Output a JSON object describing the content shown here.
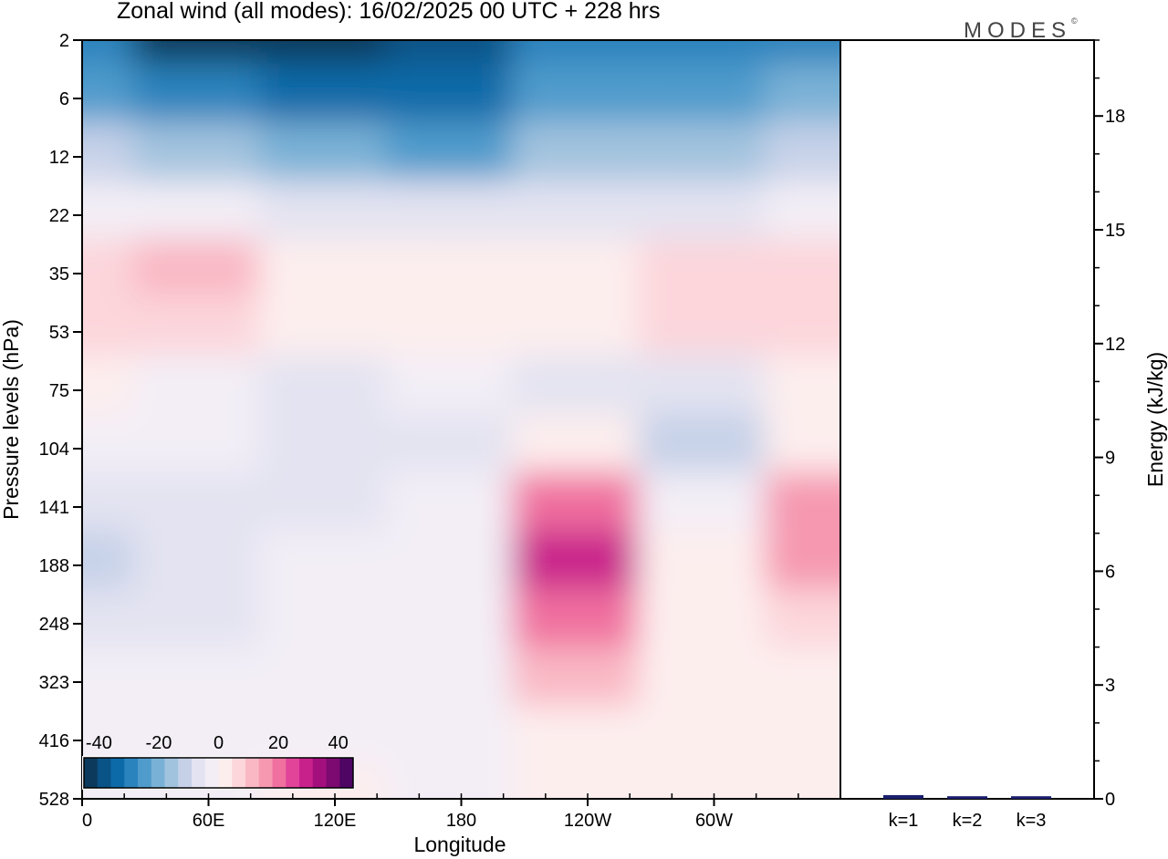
{
  "header": {
    "title": "Zonal wind (all modes):  16/02/2025  00 UTC  + 228 hrs",
    "logo_text": "MODES",
    "logo_mark": "©"
  },
  "chart_data": [
    {
      "type": "heatmap",
      "title": "Zonal wind (all modes):  16/02/2025  00 UTC  + 228 hrs",
      "xlabel": "Longitude",
      "ylabel": "Pressure levels (hPa)",
      "x_tick_labels": [
        "0",
        "60E",
        "120E",
        "180",
        "120W",
        "60W"
      ],
      "x_tick_degrees": [
        0,
        60,
        120,
        180,
        240,
        300
      ],
      "xlim": [
        0,
        360
      ],
      "y_tick_labels": [
        "2",
        "6",
        "12",
        "22",
        "35",
        "53",
        "75",
        "104",
        "141",
        "188",
        "248",
        "323",
        "416",
        "528"
      ],
      "y_axis_inverted": true,
      "colorbar": {
        "tick_labels": [
          "-40",
          "-20",
          "0",
          "20",
          "40"
        ],
        "range": [
          -45,
          45
        ],
        "colors": [
          "#0b3a5c",
          "#0a5386",
          "#0d6aa8",
          "#2a83bd",
          "#4f9bcc",
          "#79b1d6",
          "#a2c3de",
          "#c6d1e8",
          "#e3e3f1",
          "#f3eef6",
          "#fdeeee",
          "#fcd6db",
          "#f9b8c4",
          "#f598b0",
          "#f0709f",
          "#e2449a",
          "#c9218c",
          "#a40f7e",
          "#7c0a70",
          "#4e0564"
        ]
      },
      "cells": [
        {
          "lon": 0,
          "p": 2,
          "u": -28
        },
        {
          "lon": 60,
          "p": 2,
          "u": -44
        },
        {
          "lon": 120,
          "p": 2,
          "u": -44
        },
        {
          "lon": 180,
          "p": 2,
          "u": -40
        },
        {
          "lon": 240,
          "p": 2,
          "u": -30
        },
        {
          "lon": 300,
          "p": 2,
          "u": -30
        },
        {
          "lon": 360,
          "p": 2,
          "u": -28
        },
        {
          "lon": 0,
          "p": 6,
          "u": -24
        },
        {
          "lon": 60,
          "p": 6,
          "u": -30
        },
        {
          "lon": 120,
          "p": 6,
          "u": -36
        },
        {
          "lon": 180,
          "p": 6,
          "u": -32
        },
        {
          "lon": 240,
          "p": 6,
          "u": -26
        },
        {
          "lon": 300,
          "p": 6,
          "u": -24
        },
        {
          "lon": 360,
          "p": 6,
          "u": -22
        },
        {
          "lon": 0,
          "p": 12,
          "u": -12
        },
        {
          "lon": 60,
          "p": 12,
          "u": -16
        },
        {
          "lon": 120,
          "p": 12,
          "u": -22
        },
        {
          "lon": 180,
          "p": 12,
          "u": -24
        },
        {
          "lon": 240,
          "p": 12,
          "u": -16
        },
        {
          "lon": 300,
          "p": 12,
          "u": -14
        },
        {
          "lon": 360,
          "p": 12,
          "u": -12
        },
        {
          "lon": 0,
          "p": 22,
          "u": -4
        },
        {
          "lon": 60,
          "p": 22,
          "u": -4
        },
        {
          "lon": 120,
          "p": 22,
          "u": -6
        },
        {
          "lon": 180,
          "p": 22,
          "u": -8
        },
        {
          "lon": 240,
          "p": 22,
          "u": -6
        },
        {
          "lon": 300,
          "p": 22,
          "u": -6
        },
        {
          "lon": 360,
          "p": 22,
          "u": -4
        },
        {
          "lon": 0,
          "p": 35,
          "u": 5
        },
        {
          "lon": 60,
          "p": 35,
          "u": 10
        },
        {
          "lon": 120,
          "p": 35,
          "u": 2
        },
        {
          "lon": 180,
          "p": 35,
          "u": 1
        },
        {
          "lon": 240,
          "p": 35,
          "u": 4
        },
        {
          "lon": 300,
          "p": 35,
          "u": 5
        },
        {
          "lon": 360,
          "p": 35,
          "u": 6
        },
        {
          "lon": 0,
          "p": 53,
          "u": 5
        },
        {
          "lon": 60,
          "p": 53,
          "u": 8
        },
        {
          "lon": 120,
          "p": 53,
          "u": 3
        },
        {
          "lon": 180,
          "p": 53,
          "u": 0
        },
        {
          "lon": 240,
          "p": 53,
          "u": 2
        },
        {
          "lon": 300,
          "p": 53,
          "u": 5
        },
        {
          "lon": 360,
          "p": 53,
          "u": 6
        },
        {
          "lon": 0,
          "p": 75,
          "u": 1
        },
        {
          "lon": 60,
          "p": 75,
          "u": -2
        },
        {
          "lon": 120,
          "p": 75,
          "u": -6
        },
        {
          "lon": 180,
          "p": 75,
          "u": -4
        },
        {
          "lon": 240,
          "p": 75,
          "u": -6
        },
        {
          "lon": 300,
          "p": 75,
          "u": -6
        },
        {
          "lon": 360,
          "p": 75,
          "u": 1
        },
        {
          "lon": 0,
          "p": 104,
          "u": -2
        },
        {
          "lon": 60,
          "p": 104,
          "u": -4
        },
        {
          "lon": 120,
          "p": 104,
          "u": -8
        },
        {
          "lon": 180,
          "p": 104,
          "u": -6
        },
        {
          "lon": 240,
          "p": 104,
          "u": 2
        },
        {
          "lon": 300,
          "p": 104,
          "u": -10
        },
        {
          "lon": 360,
          "p": 104,
          "u": 4
        },
        {
          "lon": 0,
          "p": 141,
          "u": -6
        },
        {
          "lon": 60,
          "p": 141,
          "u": -8
        },
        {
          "lon": 120,
          "p": 141,
          "u": -6
        },
        {
          "lon": 180,
          "p": 141,
          "u": -4
        },
        {
          "lon": 240,
          "p": 141,
          "u": 20
        },
        {
          "lon": 300,
          "p": 141,
          "u": -2
        },
        {
          "lon": 360,
          "p": 141,
          "u": 14
        },
        {
          "lon": 0,
          "p": 188,
          "u": -10
        },
        {
          "lon": 60,
          "p": 188,
          "u": -6
        },
        {
          "lon": 120,
          "p": 188,
          "u": -4
        },
        {
          "lon": 180,
          "p": 188,
          "u": -3
        },
        {
          "lon": 240,
          "p": 188,
          "u": 30
        },
        {
          "lon": 300,
          "p": 188,
          "u": 2
        },
        {
          "lon": 360,
          "p": 188,
          "u": 14
        },
        {
          "lon": 0,
          "p": 248,
          "u": -6
        },
        {
          "lon": 60,
          "p": 248,
          "u": -5
        },
        {
          "lon": 120,
          "p": 248,
          "u": -2
        },
        {
          "lon": 180,
          "p": 248,
          "u": -3
        },
        {
          "lon": 240,
          "p": 248,
          "u": 22
        },
        {
          "lon": 300,
          "p": 248,
          "u": 2
        },
        {
          "lon": 360,
          "p": 248,
          "u": 8
        },
        {
          "lon": 0,
          "p": 323,
          "u": -3
        },
        {
          "lon": 60,
          "p": 323,
          "u": -4
        },
        {
          "lon": 120,
          "p": 323,
          "u": -1
        },
        {
          "lon": 180,
          "p": 323,
          "u": -4
        },
        {
          "lon": 240,
          "p": 323,
          "u": 10
        },
        {
          "lon": 300,
          "p": 323,
          "u": 1
        },
        {
          "lon": 360,
          "p": 323,
          "u": 3
        },
        {
          "lon": 0,
          "p": 416,
          "u": -2
        },
        {
          "lon": 60,
          "p": 416,
          "u": -3
        },
        {
          "lon": 120,
          "p": 416,
          "u": -1
        },
        {
          "lon": 180,
          "p": 416,
          "u": -3
        },
        {
          "lon": 240,
          "p": 416,
          "u": 2
        },
        {
          "lon": 300,
          "p": 416,
          "u": 1
        },
        {
          "lon": 360,
          "p": 416,
          "u": 2
        },
        {
          "lon": 0,
          "p": 528,
          "u": -1
        },
        {
          "lon": 60,
          "p": 528,
          "u": -2
        },
        {
          "lon": 120,
          "p": 528,
          "u": 0
        },
        {
          "lon": 180,
          "p": 528,
          "u": -2
        },
        {
          "lon": 240,
          "p": 528,
          "u": 1
        },
        {
          "lon": 300,
          "p": 528,
          "u": 1
        },
        {
          "lon": 360,
          "p": 528,
          "u": 1
        }
      ]
    },
    {
      "type": "bar",
      "categories": [
        "k=1",
        "k=2",
        "k=3"
      ],
      "values": [
        0.05,
        0.02,
        0.02
      ],
      "ylabel": "Energy (kJ/kg)",
      "y_tick_labels": [
        "0",
        "3",
        "6",
        "9",
        "12",
        "15",
        "18"
      ],
      "ylim": [
        0,
        20
      ],
      "bar_color": "#1b1f6e"
    }
  ]
}
